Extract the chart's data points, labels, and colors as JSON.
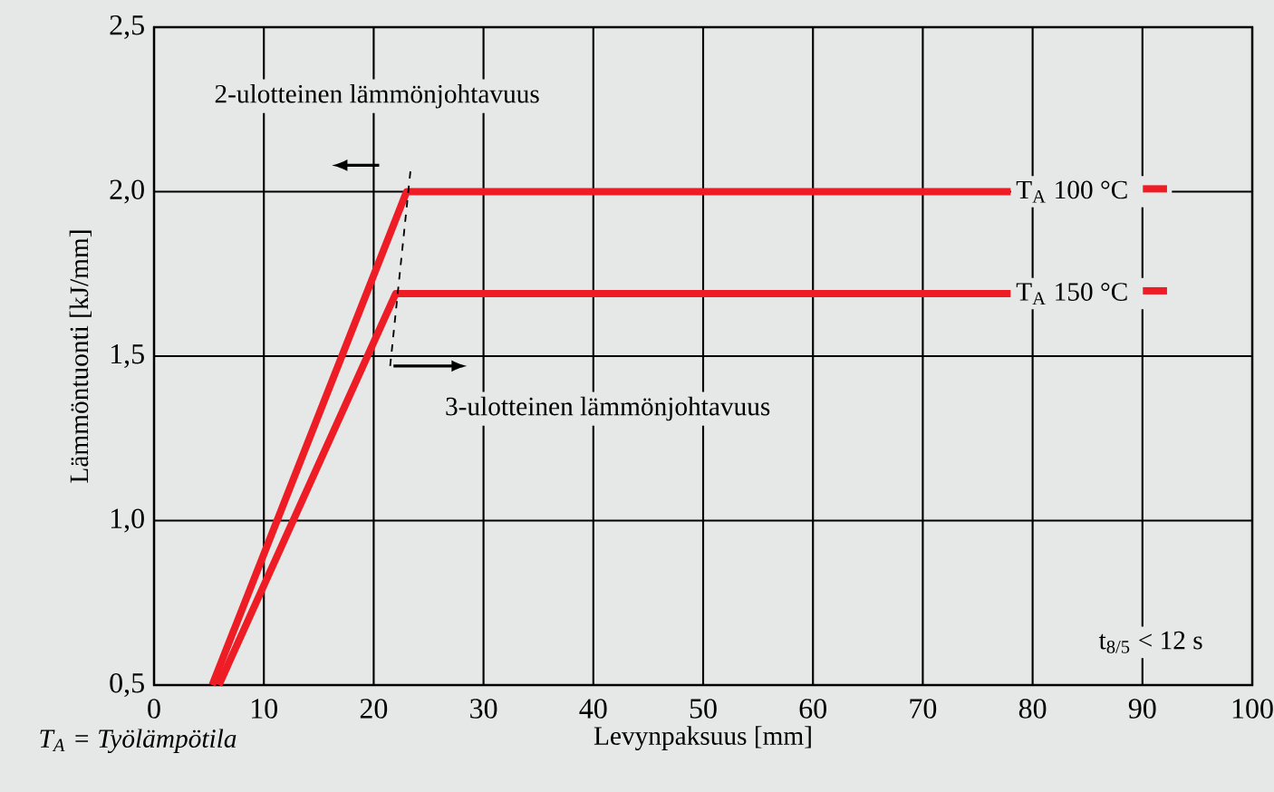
{
  "chart_data": {
    "type": "line",
    "xlabel": "Levynpaksuus [mm]",
    "ylabel": "Lämmöntuonti [kJ/mm]",
    "xlim": [
      0,
      100
    ],
    "ylim": [
      0.5,
      2.5
    ],
    "xticks": [
      0,
      10,
      20,
      30,
      40,
      50,
      60,
      70,
      80,
      90,
      100
    ],
    "yticks": [
      {
        "value": 0.5,
        "label": "0,5"
      },
      {
        "value": 1.0,
        "label": "1,0"
      },
      {
        "value": 1.5,
        "label": "1,5"
      },
      {
        "value": 2.0,
        "label": "2,0"
      },
      {
        "value": 2.5,
        "label": "2,5"
      }
    ],
    "grid": true,
    "legend": "right",
    "line_style": "solid",
    "marker": "none",
    "series": [
      {
        "name": "T$_{A}$ 100 °C",
        "color": "#ee1c25",
        "x": [
          5.3,
          23,
          78
        ],
        "values": [
          0.5,
          2.0,
          2.0
        ]
      },
      {
        "name": "T$_{A}$ 150 °C",
        "color": "#ee1c25",
        "x": [
          5.9,
          22,
          78
        ],
        "values": [
          0.5,
          1.69,
          1.69
        ]
      }
    ],
    "annotations": [
      "2-ulotteinen lämmönjohtavuus",
      "3-ulotteinen lämmönjohtavuus",
      "t$_{8/5}$ < 12 s",
      "T$_{A}$ = Työlämpötila"
    ]
  }
}
